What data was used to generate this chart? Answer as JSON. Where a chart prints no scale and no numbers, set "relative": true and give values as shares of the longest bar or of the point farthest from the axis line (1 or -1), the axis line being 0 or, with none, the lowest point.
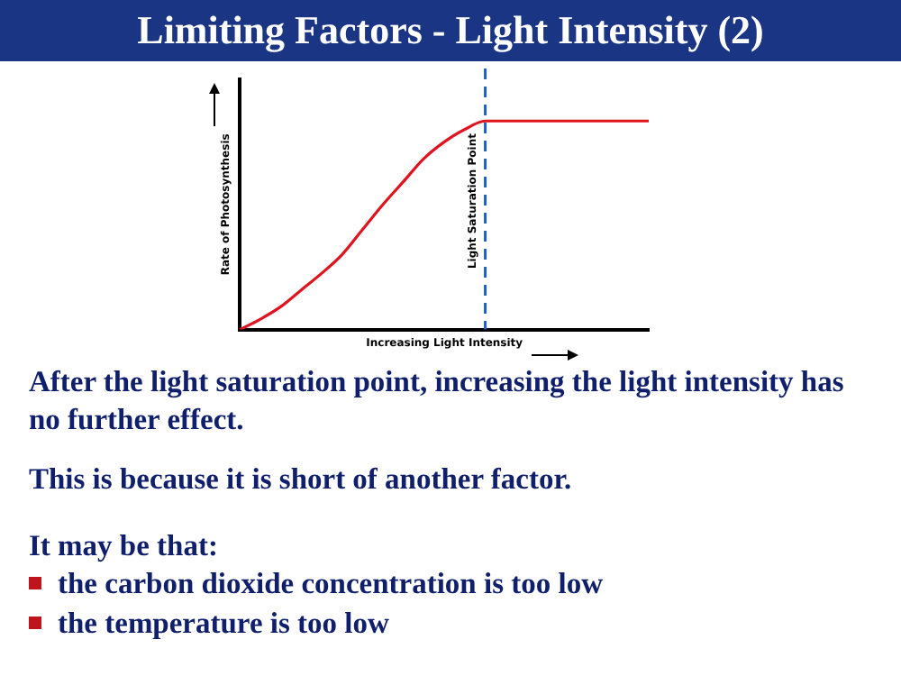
{
  "chart_data": {
    "type": "line",
    "title": "Limiting Factors - Light Intensity (2)",
    "xlabel": "Increasing Light Intensity",
    "ylabel": "Rate of Photosynthesis",
    "categories": [
      null,
      null,
      null,
      null,
      null,
      null,
      null,
      null,
      null,
      null,
      null,
      null,
      null,
      null,
      null,
      null,
      null,
      null,
      null,
      null,
      null
    ],
    "relative": true,
    "series": [
      {
        "color": "#e0141e",
        "values": [
          0,
          0.05,
          0.11,
          0.19,
          0.27,
          0.36,
          0.48,
          0.6,
          0.71,
          0.82,
          0.9,
          0.96,
          1,
          1,
          1,
          1,
          1,
          1,
          1,
          1,
          1
        ]
      }
    ],
    "ref_lines": [
      {
        "axis": "x",
        "label": "Light Saturation Point",
        "color": "#1f5fd6",
        "line_style": "dashed"
      }
    ],
    "marker": "none",
    "line_style": "solid",
    "grid": false,
    "legend": false,
    "tick_labels": false,
    "annotations": [
      "After the light saturation point, increasing the light intensity has no further effect.",
      "This is because it is short of another factor.",
      "It may be that:",
      "the carbon dioxide concentration is too low",
      "the temperature is too low"
    ]
  }
}
